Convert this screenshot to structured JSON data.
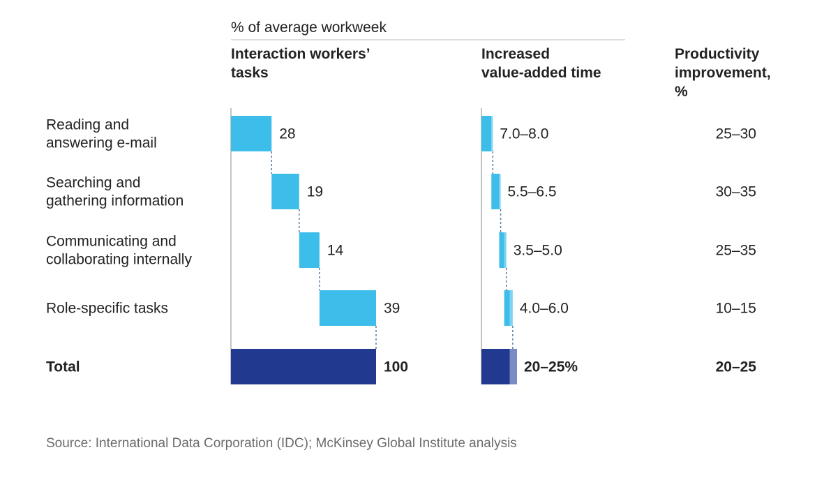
{
  "subtitle": "% of average workweek",
  "headers": {
    "tasks": "Interaction workers’ tasks",
    "value_added": "Increased value-added time",
    "productivity": "Productivity improvement, %"
  },
  "source": "Source: International Data Corporation (IDC); McKinsey Global Institute analysis",
  "colors": {
    "bar": "#3dbde9",
    "bar_light": "#7fd3f0",
    "total": "#213a8f",
    "total_light": "#7b8bc4",
    "connector": "#5a7f9e"
  },
  "chart_data": {
    "type": "waterfall",
    "title": "",
    "unit": "% of average workweek",
    "categories": [
      "Reading and answering e-mail",
      "Searching and gathering information",
      "Communicating and collaborating internally",
      "Role-specific tasks"
    ],
    "category_lines": [
      [
        "Reading and",
        "answering e-mail"
      ],
      [
        "Searching and",
        "gathering information"
      ],
      [
        "Communicating and",
        "collaborating internally"
      ],
      [
        "Role-specific tasks"
      ]
    ],
    "task_share": [
      28,
      19,
      14,
      39
    ],
    "task_labels": [
      "28",
      "19",
      "14",
      "39"
    ],
    "value_added_range": [
      [
        7.0,
        8.0
      ],
      [
        5.5,
        6.5
      ],
      [
        3.5,
        5.0
      ],
      [
        4.0,
        6.0
      ]
    ],
    "value_added_labels": [
      "7.0–8.0",
      "5.5–6.5",
      "3.5–5.0",
      "4.0–6.0"
    ],
    "productivity_labels": [
      "25–30",
      "30–35",
      "25–35",
      "10–15"
    ],
    "total": {
      "label": "Total",
      "task_share": 100,
      "task_label": "100",
      "value_added_range": [
        20,
        25
      ],
      "value_added_label": "20–25%",
      "productivity_label": "20–25"
    }
  }
}
